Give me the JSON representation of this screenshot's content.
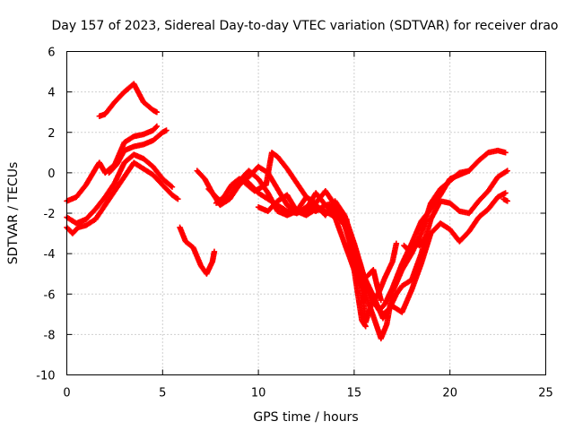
{
  "chart_data": {
    "type": "scatter",
    "title": "Day 157 of 2023, Sidereal Day-to-day VTEC variation (SDTVAR) for receiver drao",
    "xlabel": "GPS time / hours",
    "ylabel": "SDTVAR / TECUs",
    "xlim": [
      0,
      25
    ],
    "ylim": [
      -10,
      6
    ],
    "x_ticks": [
      0,
      5,
      10,
      15,
      20,
      25
    ],
    "y_ticks": [
      -10,
      -8,
      -6,
      -4,
      -2,
      0,
      2,
      4,
      6
    ],
    "grid": true,
    "marker": "plus",
    "color": "#ff0000",
    "series": [
      {
        "points": [
          [
            0,
            -1.4
          ],
          [
            0.5,
            -1.2
          ],
          [
            1,
            -0.6
          ],
          [
            1.5,
            0.2
          ],
          [
            1.7,
            0.5
          ],
          [
            2,
            0
          ],
          [
            2.5,
            0.4
          ],
          [
            3,
            1.5
          ],
          [
            3.5,
            1.8
          ],
          [
            4,
            1.9
          ],
          [
            4.5,
            2.1
          ],
          [
            4.7,
            2.3
          ]
        ]
      },
      {
        "points": [
          [
            0,
            -2.2
          ],
          [
            0.5,
            -2.5
          ],
          [
            1,
            -2.3
          ],
          [
            1.5,
            -1.8
          ],
          [
            2,
            -1.2
          ],
          [
            2.5,
            -0.5
          ],
          [
            3,
            0.5
          ],
          [
            3.5,
            0.9
          ],
          [
            4,
            0.7
          ],
          [
            4.5,
            0.3
          ],
          [
            5,
            -0.3
          ],
          [
            5.5,
            -0.7
          ]
        ]
      },
      {
        "points": [
          [
            0,
            -2.7
          ],
          [
            0.3,
            -3.0
          ],
          [
            0.6,
            -2.7
          ],
          [
            1,
            -2.6
          ],
          [
            1.5,
            -2.3
          ],
          [
            2,
            -1.6
          ],
          [
            2.5,
            -0.9
          ],
          [
            3,
            -0.2
          ],
          [
            3.5,
            0.5
          ],
          [
            4,
            0.2
          ],
          [
            4.5,
            -0.1
          ],
          [
            5,
            -0.6
          ],
          [
            5.5,
            -1.1
          ],
          [
            5.8,
            -1.3
          ]
        ]
      },
      {
        "points": [
          [
            1.7,
            2.8
          ],
          [
            2,
            2.9
          ],
          [
            2.5,
            3.5
          ],
          [
            3,
            4.0
          ],
          [
            3.5,
            4.4
          ],
          [
            4,
            3.5
          ],
          [
            4.5,
            3.1
          ],
          [
            4.7,
            3.0
          ]
        ]
      },
      {
        "points": [
          [
            2.2,
            0.0
          ],
          [
            2.6,
            0.4
          ],
          [
            3,
            1.1
          ],
          [
            3.5,
            1.3
          ],
          [
            4,
            1.4
          ],
          [
            4.5,
            1.6
          ],
          [
            5,
            2.0
          ],
          [
            5.2,
            2.1
          ]
        ]
      },
      {
        "points": [
          [
            5.9,
            -2.7
          ],
          [
            6.2,
            -3.4
          ],
          [
            6.6,
            -3.7
          ],
          [
            7,
            -4.6
          ],
          [
            7.3,
            -5.0
          ],
          [
            7.6,
            -4.4
          ],
          [
            7.7,
            -3.9
          ]
        ]
      },
      {
        "points": [
          [
            6.8,
            0.1
          ],
          [
            7.2,
            -0.3
          ],
          [
            7.6,
            -1.0
          ],
          [
            8,
            -1.6
          ],
          [
            8.5,
            -1.3
          ],
          [
            9,
            -0.6
          ],
          [
            9.5,
            -0.2
          ],
          [
            10,
            0.3
          ],
          [
            10.5,
            0
          ],
          [
            11,
            -0.8
          ],
          [
            11.5,
            -1.6
          ],
          [
            12,
            -2.0
          ],
          [
            12.5,
            -1.8
          ],
          [
            13,
            -1.0
          ],
          [
            13.5,
            -1.6
          ],
          [
            14,
            -1.5
          ],
          [
            14.5,
            -2.4
          ],
          [
            15,
            -3.8
          ],
          [
            15.5,
            -5.3
          ],
          [
            16,
            -6.3
          ],
          [
            16.3,
            -6.8
          ],
          [
            16.6,
            -6.5
          ],
          [
            17,
            -5.7
          ],
          [
            17.5,
            -4.5
          ],
          [
            18,
            -3.5
          ],
          [
            18.5,
            -2.4
          ],
          [
            19,
            -1.8
          ],
          [
            19.5,
            -1.1
          ],
          [
            20,
            -0.3
          ],
          [
            20.5,
            -0.1
          ],
          [
            21,
            0.1
          ],
          [
            21.5,
            0.6
          ],
          [
            22,
            1.0
          ],
          [
            22.5,
            1.1
          ],
          [
            22.9,
            1.0
          ]
        ]
      },
      {
        "points": [
          [
            7.4,
            -0.8
          ],
          [
            8,
            -1.4
          ],
          [
            8.5,
            -1.2
          ],
          [
            9,
            -0.4
          ],
          [
            9.5,
            0.1
          ],
          [
            10,
            -0.3
          ],
          [
            10.5,
            -1.0
          ],
          [
            11,
            -1.9
          ],
          [
            11.5,
            -2.1
          ],
          [
            12,
            -1.9
          ],
          [
            12.5,
            -1.2
          ],
          [
            13,
            -1.6
          ],
          [
            13.5,
            -2.1
          ],
          [
            14,
            -1.4
          ],
          [
            14.5,
            -2.1
          ],
          [
            15,
            -3.5
          ],
          [
            15.5,
            -5.1
          ],
          [
            16,
            -6.1
          ],
          [
            16.5,
            -7.2
          ],
          [
            16.8,
            -6.8
          ],
          [
            17.2,
            -6.0
          ],
          [
            17.5,
            -5.6
          ],
          [
            18,
            -5.3
          ],
          [
            18.5,
            -4.0
          ],
          [
            19,
            -2.3
          ],
          [
            19.5,
            -1.4
          ],
          [
            20,
            -1.5
          ],
          [
            20.5,
            -1.9
          ],
          [
            21,
            -2.0
          ],
          [
            21.5,
            -1.4
          ],
          [
            22,
            -0.9
          ],
          [
            22.5,
            -0.2
          ],
          [
            23,
            0.1
          ]
        ]
      },
      {
        "points": [
          [
            7.8,
            -1.5
          ],
          [
            8.2,
            -1.2
          ],
          [
            8.6,
            -0.6
          ],
          [
            9,
            -0.3
          ],
          [
            9.5,
            -0.5
          ],
          [
            10,
            -1.0
          ],
          [
            10.5,
            -1.3
          ],
          [
            11,
            -1.6
          ],
          [
            11.5,
            -1.9
          ],
          [
            12,
            -2.0
          ],
          [
            12.5,
            -1.7
          ],
          [
            13,
            -1.9
          ],
          [
            13.5,
            -1.6
          ],
          [
            14,
            -2.0
          ],
          [
            14.5,
            -2.6
          ],
          [
            15,
            -4.1
          ],
          [
            15.5,
            -5.8
          ],
          [
            16,
            -7.1
          ],
          [
            16.4,
            -8.2
          ],
          [
            16.7,
            -7.5
          ],
          [
            17,
            -5.9
          ],
          [
            17.5,
            -4.8
          ],
          [
            18,
            -4.0
          ],
          [
            18.5,
            -3.0
          ],
          [
            19,
            -1.5
          ],
          [
            19.5,
            -0.8
          ],
          [
            20,
            -0.4
          ],
          [
            20.5,
            0
          ],
          [
            21,
            0.1
          ]
        ]
      },
      {
        "points": [
          [
            9.3,
            -0.5
          ],
          [
            9.8,
            -0.9
          ],
          [
            10.4,
            -0.6
          ],
          [
            10.7,
            1.0
          ],
          [
            11,
            0.8
          ],
          [
            11.5,
            0.2
          ],
          [
            12,
            -0.5
          ],
          [
            12.5,
            -1.2
          ],
          [
            13,
            -1.5
          ],
          [
            13.5,
            -0.9
          ],
          [
            14,
            -1.6
          ],
          [
            14.5,
            -2.6
          ],
          [
            15,
            -3.5
          ],
          [
            15.5,
            -5.1
          ],
          [
            16,
            -6.4
          ],
          [
            16.5,
            -7.0
          ],
          [
            17,
            -6.6
          ],
          [
            17.5,
            -6.9
          ],
          [
            18,
            -5.8
          ],
          [
            18.5,
            -4.5
          ],
          [
            19,
            -3.0
          ],
          [
            19.5,
            -2.5
          ],
          [
            20,
            -2.8
          ],
          [
            20.5,
            -3.4
          ],
          [
            21,
            -2.9
          ],
          [
            21.5,
            -2.2
          ],
          [
            22,
            -1.8
          ],
          [
            22.5,
            -1.2
          ],
          [
            22.9,
            -1.0
          ]
        ]
      },
      {
        "points": [
          [
            10,
            -1.7
          ],
          [
            10.5,
            -1.9
          ],
          [
            11,
            -1.4
          ],
          [
            11.5,
            -1.1
          ],
          [
            12,
            -1.9
          ],
          [
            12.5,
            -2.1
          ],
          [
            13,
            -1.8
          ],
          [
            13.5,
            -1.9
          ],
          [
            14,
            -2.2
          ],
          [
            14.5,
            -3.5
          ],
          [
            15,
            -4.8
          ],
          [
            15.4,
            -5.7
          ],
          [
            15.6,
            -7.4
          ],
          [
            15.9,
            -6.5
          ],
          [
            16.3,
            -5.9
          ],
          [
            16.6,
            -5.2
          ],
          [
            17,
            -4.4
          ],
          [
            17.2,
            -3.5
          ]
        ]
      },
      {
        "points": [
          [
            12.4,
            -1.9
          ],
          [
            13,
            -1.6
          ],
          [
            13.5,
            -2.0
          ],
          [
            14,
            -1.7
          ],
          [
            14.6,
            -2.3
          ],
          [
            15.4,
            -7.3
          ],
          [
            15.6,
            -7.6
          ]
        ]
      },
      {
        "points": [
          [
            15.7,
            -5.1
          ],
          [
            16.0,
            -4.8
          ],
          [
            16.2,
            -5.6
          ],
          [
            16.4,
            -6.3
          ]
        ]
      },
      {
        "points": [
          [
            17.6,
            -3.6
          ],
          [
            17.9,
            -3.9
          ],
          [
            18.1,
            -3.4
          ],
          [
            18.4,
            -3.6
          ],
          [
            18.6,
            -3.3
          ]
        ]
      },
      {
        "points": [
          [
            22.8,
            -1.3
          ],
          [
            23.0,
            -1.4
          ]
        ]
      }
    ]
  }
}
